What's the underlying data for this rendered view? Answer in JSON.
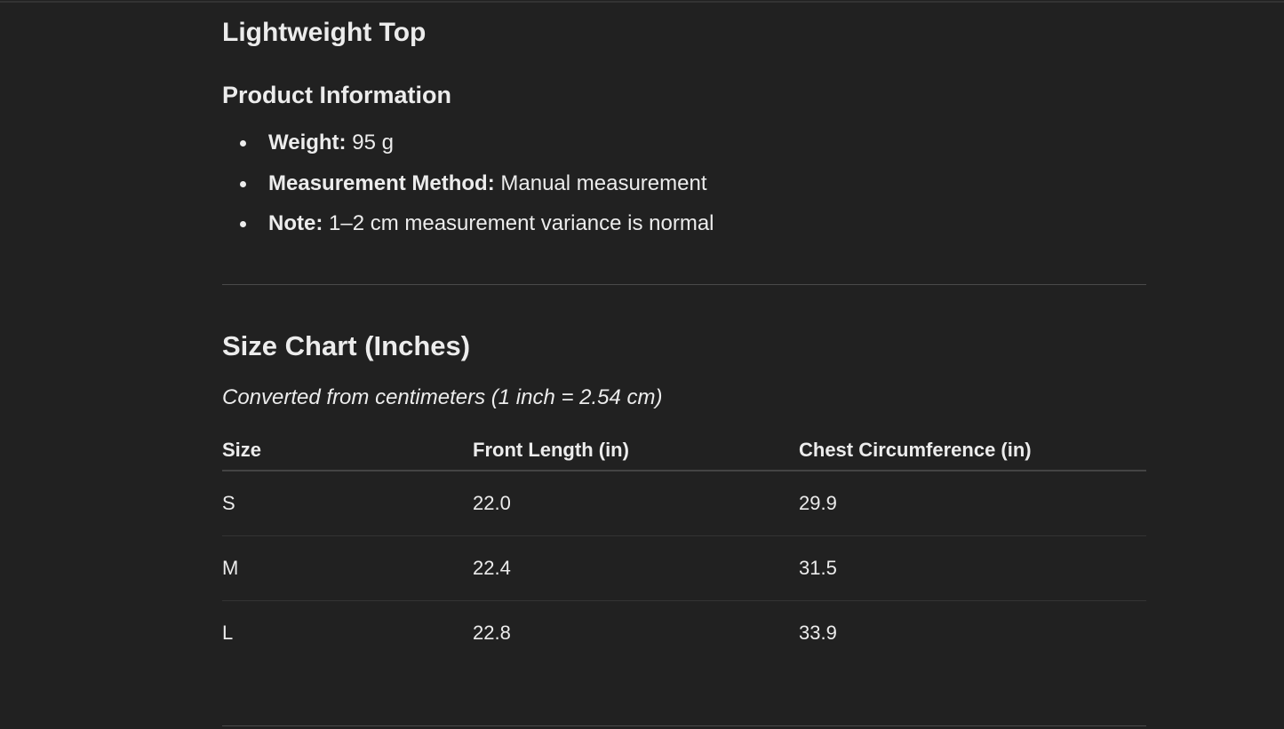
{
  "title": "Lightweight Top",
  "product_info": {
    "heading": "Product Information",
    "items": [
      {
        "label": "Weight:",
        "value": "95 g"
      },
      {
        "label": "Measurement Method:",
        "value": "Manual measurement"
      },
      {
        "label": "Note:",
        "value": "1–2 cm measurement variance is normal"
      }
    ]
  },
  "size_chart": {
    "heading": "Size Chart (Inches)",
    "note": "Converted from centimeters (1 inch = 2.54 cm)",
    "columns": [
      "Size",
      "Front Length (in)",
      "Chest Circumference (in)"
    ],
    "rows": [
      [
        "S",
        "22.0",
        "29.9"
      ],
      [
        "M",
        "22.4",
        "31.5"
      ],
      [
        "L",
        "22.8",
        "33.9"
      ]
    ]
  }
}
